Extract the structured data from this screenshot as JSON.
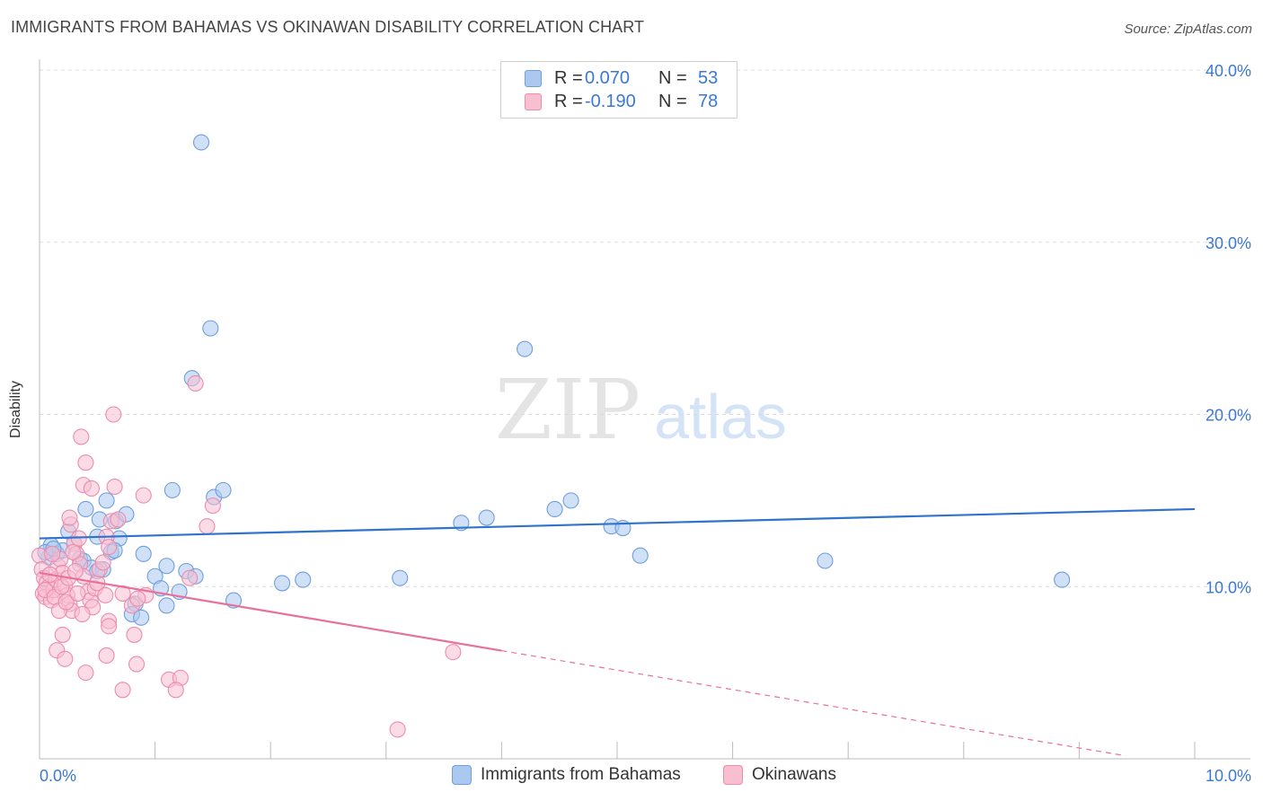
{
  "title": "IMMIGRANTS FROM BAHAMAS VS OKINAWAN DISABILITY CORRELATION CHART",
  "source": "Source: ZipAtlas.com",
  "watermark": {
    "zip": "ZIP",
    "atlas": "atlas"
  },
  "legend_top": {
    "rows": [
      {
        "r_label": "R =",
        "r_value": "0.070",
        "n_label": "N =",
        "n_value": "53",
        "color": "#aac8f0",
        "border": "#6f9edd"
      },
      {
        "r_label": "R =",
        "r_value": "-0.190",
        "n_label": "N =",
        "n_value": "78",
        "color": "#f8bfd1",
        "border": "#ec8cab"
      }
    ]
  },
  "legend_bottom": {
    "items": [
      {
        "label": "Immigrants from Bahamas",
        "color": "#aac8f0",
        "border": "#6f9edd"
      },
      {
        "label": "Okinawans",
        "color": "#f8bfd1",
        "border": "#ec8cab"
      }
    ]
  },
  "chart_data": {
    "type": "scatter",
    "title": "IMMIGRANTS FROM BAHAMAS VS OKINAWAN DISABILITY CORRELATION CHART",
    "xlabel": "",
    "ylabel": "Disability",
    "xlim": [
      0,
      10
    ],
    "ylim": [
      0,
      40
    ],
    "x_tick_labels": [
      {
        "value": 0,
        "label": "0.0%"
      },
      {
        "value": 10,
        "label": "10.0%"
      }
    ],
    "y_tick_labels": [
      {
        "value": 10,
        "label": "10.0%"
      },
      {
        "value": 20,
        "label": "20.0%"
      },
      {
        "value": 30,
        "label": "30.0%"
      },
      {
        "value": 40,
        "label": "40.0%"
      }
    ],
    "grid": true,
    "colors": {
      "blue_fill": "#aac8f0",
      "blue_stroke": "#6f9edd",
      "blue_line": "#2f73cc",
      "pink_fill": "#f8bfd1",
      "pink_stroke": "#ec8cab",
      "pink_line": "#e8709a",
      "tick_label": "#3a78d4",
      "grid": "#dddddd",
      "axis": "#bbbbbb"
    },
    "series": [
      {
        "name": "Immigrants from Bahamas",
        "r": 0.07,
        "n": 53,
        "trend": {
          "x0": 0,
          "y0": 12.8,
          "x1": 10,
          "y1": 14.5,
          "dashed_from": null
        },
        "points": [
          [
            1.4,
            35.8
          ],
          [
            1.48,
            25.0
          ],
          [
            1.32,
            22.1
          ],
          [
            4.2,
            23.8
          ],
          [
            0.58,
            15.0
          ],
          [
            1.15,
            15.6
          ],
          [
            1.51,
            15.2
          ],
          [
            1.59,
            15.6
          ],
          [
            0.4,
            14.5
          ],
          [
            0.52,
            13.9
          ],
          [
            0.66,
            13.8
          ],
          [
            0.75,
            14.2
          ],
          [
            0.25,
            13.2
          ],
          [
            0.3,
            12.5
          ],
          [
            0.5,
            12.9
          ],
          [
            0.69,
            12.8
          ],
          [
            0.1,
            12.4
          ],
          [
            0.15,
            11.9
          ],
          [
            0.2,
            12.1
          ],
          [
            0.08,
            11.7
          ],
          [
            0.35,
            11.6
          ],
          [
            0.38,
            11.5
          ],
          [
            0.62,
            12.0
          ],
          [
            0.65,
            12.1
          ],
          [
            0.9,
            11.9
          ],
          [
            1.1,
            11.2
          ],
          [
            0.45,
            11.1
          ],
          [
            0.55,
            11.0
          ],
          [
            0.5,
            10.9
          ],
          [
            1.0,
            10.6
          ],
          [
            1.27,
            10.9
          ],
          [
            1.35,
            10.6
          ],
          [
            1.05,
            9.9
          ],
          [
            1.21,
            9.7
          ],
          [
            1.68,
            9.2
          ],
          [
            0.83,
            9.0
          ],
          [
            0.8,
            8.4
          ],
          [
            0.88,
            8.2
          ],
          [
            1.1,
            8.9
          ],
          [
            2.1,
            10.2
          ],
          [
            2.28,
            10.4
          ],
          [
            3.12,
            10.5
          ],
          [
            3.65,
            13.7
          ],
          [
            3.87,
            14.0
          ],
          [
            4.46,
            14.5
          ],
          [
            4.6,
            15.0
          ],
          [
            4.95,
            13.5
          ],
          [
            5.05,
            13.4
          ],
          [
            5.2,
            11.8
          ],
          [
            6.8,
            11.5
          ],
          [
            8.85,
            10.4
          ],
          [
            0.05,
            12.0
          ],
          [
            0.12,
            12.2
          ]
        ]
      },
      {
        "name": "Okinawans",
        "r": -0.19,
        "n": 78,
        "trend": {
          "x0": 0,
          "y0": 10.8,
          "x1": 10,
          "y1": -0.5,
          "dashed_from": 4.0
        },
        "points": [
          [
            0.0,
            11.8
          ],
          [
            0.02,
            11.0
          ],
          [
            0.04,
            10.5
          ],
          [
            0.06,
            10.2
          ],
          [
            0.08,
            10.0
          ],
          [
            0.03,
            9.6
          ],
          [
            0.05,
            9.4
          ],
          [
            0.1,
            9.2
          ],
          [
            0.12,
            9.8
          ],
          [
            0.14,
            10.4
          ],
          [
            0.16,
            11.2
          ],
          [
            0.18,
            11.6
          ],
          [
            0.2,
            10.8
          ],
          [
            0.22,
            10.1
          ],
          [
            0.24,
            9.5
          ],
          [
            0.26,
            9.0
          ],
          [
            0.28,
            8.6
          ],
          [
            0.3,
            12.5
          ],
          [
            0.32,
            11.9
          ],
          [
            0.35,
            11.3
          ],
          [
            0.27,
            13.6
          ],
          [
            0.26,
            14.0
          ],
          [
            0.34,
            12.8
          ],
          [
            0.38,
            10.6
          ],
          [
            0.42,
            9.7
          ],
          [
            0.44,
            9.2
          ],
          [
            0.46,
            8.8
          ],
          [
            0.48,
            9.9
          ],
          [
            0.5,
            10.2
          ],
          [
            0.52,
            11.0
          ],
          [
            0.55,
            11.4
          ],
          [
            0.58,
            12.9
          ],
          [
            0.6,
            12.3
          ],
          [
            0.62,
            13.8
          ],
          [
            0.4,
            17.2
          ],
          [
            0.36,
            18.7
          ],
          [
            0.38,
            15.9
          ],
          [
            0.45,
            15.7
          ],
          [
            0.65,
            15.8
          ],
          [
            0.64,
            20.0
          ],
          [
            0.9,
            15.3
          ],
          [
            0.68,
            13.9
          ],
          [
            1.35,
            21.8
          ],
          [
            1.5,
            14.7
          ],
          [
            1.45,
            13.5
          ],
          [
            1.3,
            10.5
          ],
          [
            0.72,
            9.6
          ],
          [
            0.8,
            8.9
          ],
          [
            0.92,
            9.5
          ],
          [
            0.85,
            9.3
          ],
          [
            0.57,
            9.5
          ],
          [
            0.6,
            8.0
          ],
          [
            0.6,
            7.7
          ],
          [
            0.82,
            7.2
          ],
          [
            0.2,
            7.2
          ],
          [
            0.15,
            6.3
          ],
          [
            0.22,
            5.8
          ],
          [
            0.4,
            5.0
          ],
          [
            0.58,
            6.0
          ],
          [
            0.84,
            5.5
          ],
          [
            0.72,
            4.0
          ],
          [
            1.12,
            4.6
          ],
          [
            1.22,
            4.7
          ],
          [
            1.18,
            4.0
          ],
          [
            3.1,
            1.7
          ],
          [
            3.58,
            6.2
          ],
          [
            0.05,
            9.8
          ],
          [
            0.09,
            10.7
          ],
          [
            0.11,
            11.9
          ],
          [
            0.13,
            9.4
          ],
          [
            0.17,
            8.6
          ],
          [
            0.19,
            10.0
          ],
          [
            0.23,
            9.1
          ],
          [
            0.25,
            10.5
          ],
          [
            0.29,
            12.0
          ],
          [
            0.31,
            10.9
          ],
          [
            0.33,
            9.6
          ],
          [
            0.37,
            8.4
          ]
        ]
      }
    ]
  }
}
